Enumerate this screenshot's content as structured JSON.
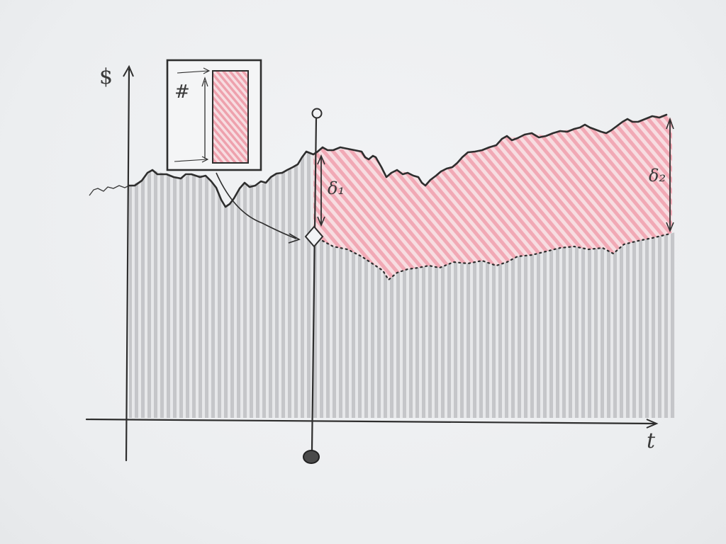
{
  "labels": {
    "y_axis": "$",
    "x_axis": "t",
    "inset_symbol": "#",
    "delta_1": "δ₁",
    "delta_2": "δ₂"
  },
  "colors": {
    "paper": "#eeeff1",
    "ink": "#2e2e2e",
    "grey_fill": "#b9bbbd",
    "pink_fill": "#f3a8b4"
  }
}
